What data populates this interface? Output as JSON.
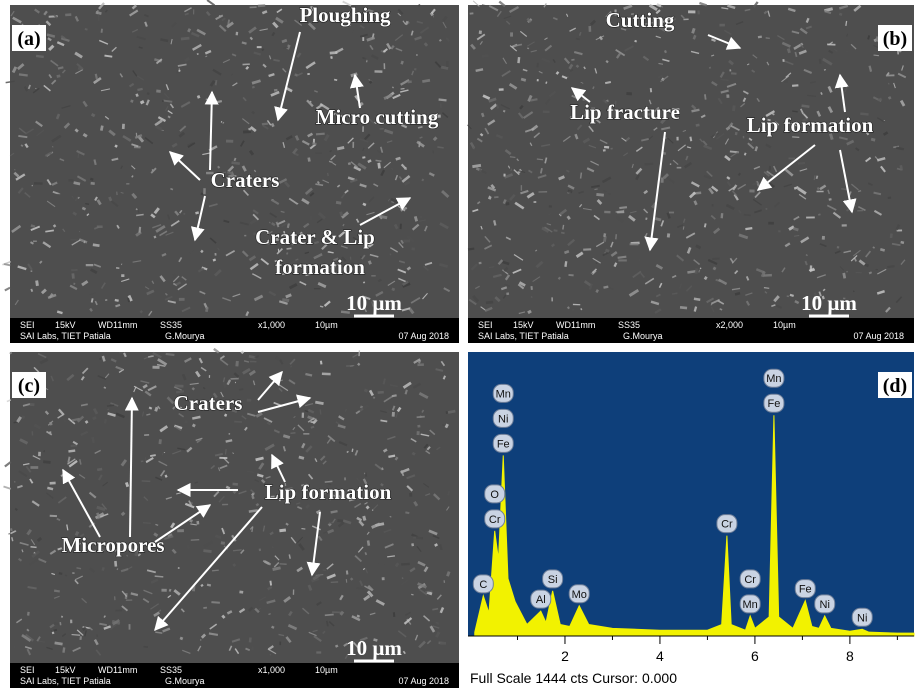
{
  "panels": [
    {
      "label": "(a)",
      "annotations": [
        "Ploughing",
        "Micro cutting",
        "Craters",
        "Crater & Lip",
        "formation"
      ],
      "scale_bar": "10 µm",
      "info": {
        "row1": [
          "SEI",
          "15kV",
          "WD11mm",
          "SS35",
          "x1,000",
          "10µm"
        ],
        "row2": [
          "SAI Labs, TIET Patiala",
          "G.Mourya",
          "07 Aug 2018"
        ]
      }
    },
    {
      "label": "(b)",
      "annotations": [
        "Cutting",
        "Lip fracture",
        "Lip formation"
      ],
      "scale_bar": "10 µm",
      "info": {
        "row1": [
          "SEI",
          "15kV",
          "WD11mm",
          "SS35",
          "x2,000",
          "10µm"
        ],
        "row2": [
          "SAI Labs, TIET Patiala",
          "G.Mourya",
          "07 Aug 2018"
        ]
      }
    },
    {
      "label": "(c)",
      "annotations": [
        "Craters",
        "Lip formation",
        "Micropores"
      ],
      "scale_bar": "10 µm",
      "info": {
        "row1": [
          "SEI",
          "15kV",
          "WD11mm",
          "SS35",
          "x1,000",
          "10µm"
        ],
        "row2": [
          "SAI Labs, TIET Patiala",
          "G.Mourya",
          "07 Aug 2018"
        ]
      }
    }
  ],
  "chart_data": {
    "type": "area",
    "label": "(d)",
    "color": "#f2f200",
    "x": [
      0.1,
      0.28,
      0.4,
      0.52,
      0.6,
      0.7,
      0.8,
      0.95,
      1.2,
      1.49,
      1.6,
      1.74,
      1.9,
      2.1,
      2.3,
      2.5,
      3.0,
      4.0,
      5.0,
      5.3,
      5.41,
      5.5,
      5.8,
      5.9,
      6.0,
      6.3,
      6.4,
      6.5,
      6.8,
      7.06,
      7.2,
      7.35,
      7.47,
      7.6,
      8.0,
      8.26,
      8.4,
      9.0,
      9.35
    ],
    "values": [
      20,
      210,
      120,
      550,
      400,
      945,
      300,
      180,
      60,
      130,
      70,
      236,
      60,
      50,
      158,
      60,
      40,
      30,
      30,
      60,
      525,
      60,
      30,
      105,
      40,
      100,
      1155,
      100,
      40,
      185,
      50,
      40,
      105,
      40,
      25,
      35,
      20,
      15,
      15
    ],
    "xlim": [
      0,
      9.35
    ],
    "ylim": [
      0,
      1444
    ],
    "xticks": [
      2,
      4,
      6,
      8
    ],
    "peak_labels": [
      {
        "energy": 0.28,
        "elements": [
          "C"
        ]
      },
      {
        "energy": 0.52,
        "elements": [
          "Cr",
          "O"
        ]
      },
      {
        "energy": 0.7,
        "elements": [
          "Fe",
          "Ni",
          "Mn"
        ]
      },
      {
        "energy": 1.49,
        "elements": [
          "Al"
        ]
      },
      {
        "energy": 1.74,
        "elements": [
          "Si"
        ]
      },
      {
        "energy": 2.3,
        "elements": [
          "Mo"
        ]
      },
      {
        "energy": 5.41,
        "elements": [
          "Cr"
        ]
      },
      {
        "energy": 5.9,
        "elements": [
          "Mn",
          "Cr"
        ]
      },
      {
        "energy": 6.4,
        "elements": [
          "Fe",
          "Mn"
        ]
      },
      {
        "energy": 7.06,
        "elements": [
          "Fe"
        ]
      },
      {
        "energy": 7.47,
        "elements": [
          "Ni"
        ]
      },
      {
        "energy": 8.26,
        "elements": [
          "Ni"
        ]
      }
    ],
    "footer": "Full Scale 1444 cts Cursor: 0.000"
  }
}
